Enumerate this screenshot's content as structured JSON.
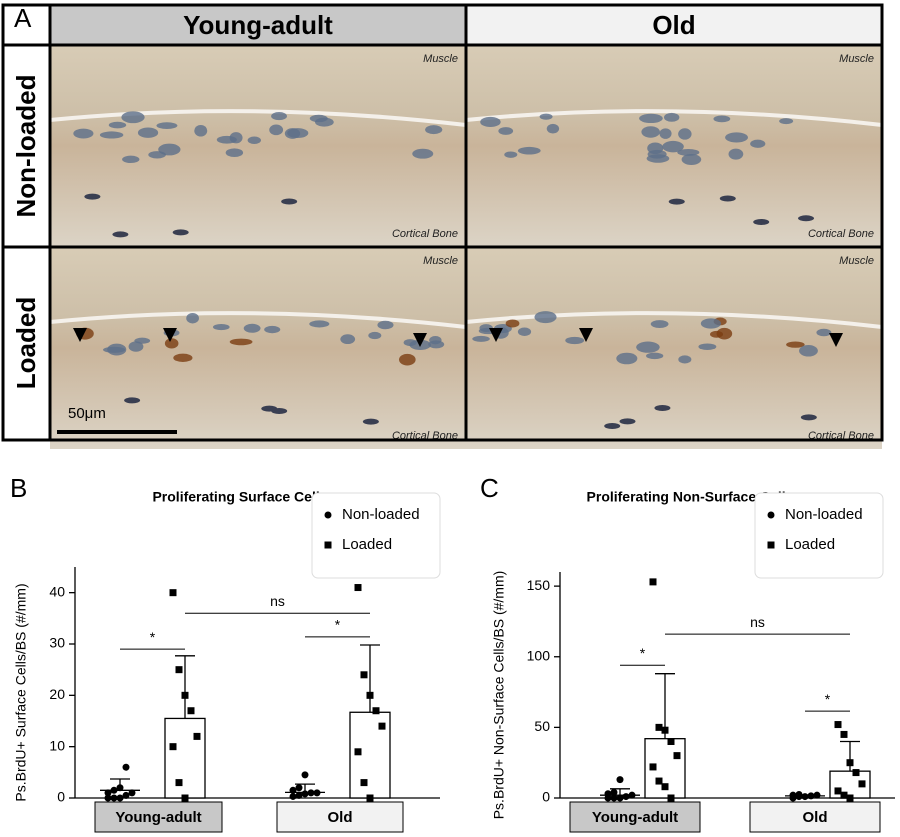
{
  "panel_a": {
    "letter": "A",
    "columns": [
      "Young-adult",
      "Old"
    ],
    "rows": [
      "Non-loaded",
      "Loaded"
    ],
    "top_label": "Muscle",
    "bottom_label": "Cortical Bone",
    "scale_bar": "50μm"
  },
  "chart_data": [
    {
      "type": "bar",
      "letter": "B",
      "title": "Proliferating Surface Cells",
      "y_label": "Ps.BrdU+ Surface Cells/BS (#/mm)",
      "categories": [
        "Young-adult",
        "Old"
      ],
      "category_colors": [
        "#c8c8c8",
        "#f2f2f2"
      ],
      "ylim": [
        0,
        45
      ],
      "yticks": [
        0,
        10,
        20,
        30,
        40
      ],
      "series": [
        {
          "name": "Non-loaded",
          "marker": "circle",
          "color": "#ffffff",
          "values": [
            1.5,
            1.1
          ],
          "errors": [
            2.2,
            1.6
          ],
          "points": [
            [
              0,
              0,
              0,
              0.5,
              1,
              1,
              1.5,
              2,
              6
            ],
            [
              0.3,
              0.5,
              0.8,
              1,
              1,
              1.5,
              2,
              4.5
            ]
          ]
        },
        {
          "name": "Loaded",
          "marker": "square",
          "color": "#ffffff",
          "values": [
            15.5,
            16.7
          ],
          "errors": [
            12.2,
            13.1
          ],
          "points": [
            [
              40,
              25,
              20,
              17,
              12,
              10,
              3,
              0
            ],
            [
              41,
              24,
              20,
              17,
              14,
              9,
              3,
              0
            ]
          ]
        }
      ],
      "annotations": [
        {
          "text": "*",
          "y": 29,
          "from": [
            0,
            0
          ],
          "to": [
            0,
            1
          ]
        },
        {
          "text": "*",
          "y": 31.4,
          "from": [
            1,
            0
          ],
          "to": [
            1,
            1
          ]
        },
        {
          "text": "ns",
          "y": 36,
          "from": [
            0,
            1
          ],
          "to": [
            1,
            1
          ]
        }
      ]
    },
    {
      "type": "bar",
      "letter": "C",
      "title": "Proliferating Non-Surface Cells",
      "y_label": "Ps.BrdU+ Non-Surface Cells/BS (#/mm)",
      "categories": [
        "Young-adult",
        "Old"
      ],
      "category_colors": [
        "#c8c8c8",
        "#f2f2f2"
      ],
      "ylim": [
        0,
        160
      ],
      "yticks": [
        0,
        50,
        100,
        150
      ],
      "series": [
        {
          "name": "Non-loaded",
          "marker": "circle",
          "color": "#ffffff",
          "values": [
            2,
            1.5
          ],
          "errors": [
            4.5,
            0.5
          ],
          "points": [
            [
              0,
              0,
              0,
              1,
              2,
              3,
              4,
              13
            ],
            [
              0,
              1,
              1,
              1.5,
              2,
              2,
              2.5
            ]
          ]
        },
        {
          "name": "Loaded",
          "marker": "square",
          "color": "#ffffff",
          "values": [
            42,
            19
          ],
          "errors": [
            46,
            21
          ],
          "points": [
            [
              153,
              50,
              48,
              40,
              30,
              22,
              12,
              8,
              0
            ],
            [
              52,
              45,
              25,
              18,
              10,
              5,
              2,
              0
            ]
          ]
        }
      ],
      "annotations": [
        {
          "text": "*",
          "y": 94,
          "from": [
            0,
            0
          ],
          "to": [
            0,
            1
          ]
        },
        {
          "text": "*",
          "y": 61.5,
          "from": [
            1,
            0
          ],
          "to": [
            1,
            1
          ]
        },
        {
          "text": "ns",
          "y": 116,
          "from": [
            0,
            1
          ],
          "to": [
            1,
            1
          ]
        }
      ]
    }
  ]
}
